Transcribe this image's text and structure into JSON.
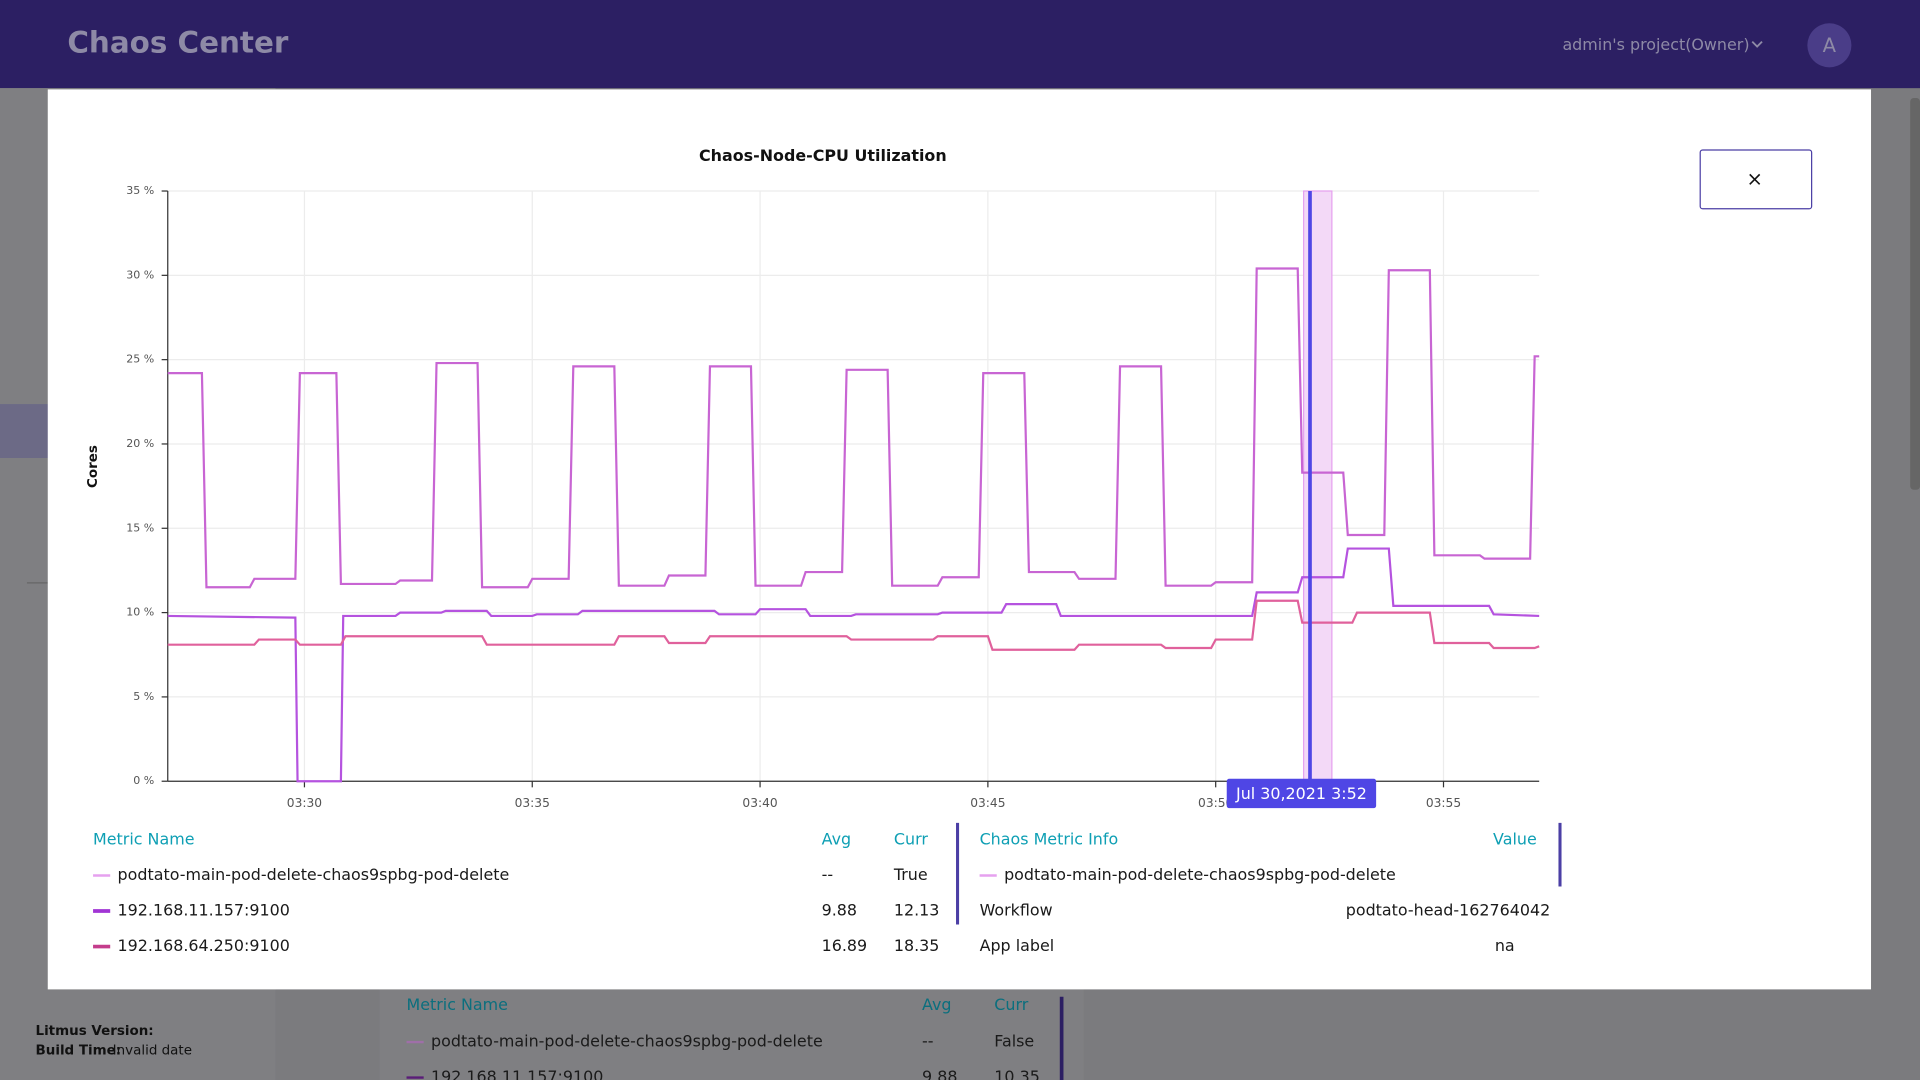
{
  "header": {
    "title": "Chaos Center",
    "project": "admin's project(Owner)",
    "avatar": "A"
  },
  "sidebar": {
    "version_label": "Litmus Version:",
    "build_label": "Build Time:",
    "build_value": "Invalid date"
  },
  "background_table": {
    "headers": [
      "Metric Name",
      "Avg",
      "Curr"
    ],
    "rows": [
      [
        "podtato-main-pod-delete-chaos9spbg-pod-delete",
        "--",
        "False"
      ],
      [
        "192.168.11.157:9100",
        "9.88",
        "10.35"
      ]
    ]
  },
  "modal": {
    "close": "×"
  },
  "chart_data": {
    "type": "line",
    "title": "Chaos-Node-CPU Utilization",
    "y_label": "Cores",
    "xlim": [
      207,
      237.1
    ],
    "xticks": [
      {
        "value": 210,
        "label": "03:30"
      },
      {
        "value": 215,
        "label": "03:35"
      },
      {
        "value": 220,
        "label": "03:40"
      },
      {
        "value": 225,
        "label": "03:45"
      },
      {
        "value": 230,
        "label": "03:50"
      },
      {
        "value": 235,
        "label": "03:55"
      }
    ],
    "ylim": [
      0,
      35
    ],
    "yticks": [
      {
        "value": 0,
        "label": "0 %"
      },
      {
        "value": 5,
        "label": "5 %"
      },
      {
        "value": 10,
        "label": "10 %"
      },
      {
        "value": 15,
        "label": "15 %"
      },
      {
        "value": 20,
        "label": "20 %"
      },
      {
        "value": 25,
        "label": "25 %"
      },
      {
        "value": 30,
        "label": "30 %"
      },
      {
        "value": 35,
        "label": "35 %"
      }
    ],
    "grid": true,
    "chaos_band": [
      231.93,
      232.55
    ],
    "chaos_color": "#f3d9f7",
    "cursor_x": 232.07,
    "cursor_color": "#4f46e5",
    "tooltip": "Jul 30,2021 3:52",
    "series": [
      {
        "color": "#c865d3",
        "x": [
          207,
          207.75,
          207.85,
          208.8,
          208.9,
          209.8,
          209.9,
          210.7,
          210.8,
          212,
          212.1,
          212.8,
          212.9,
          213.8,
          213.9,
          214.9,
          215,
          215.8,
          215.9,
          216.8,
          216.9,
          217.9,
          218,
          218.8,
          218.9,
          219.8,
          219.9,
          220.9,
          221,
          221.8,
          221.9,
          222.8,
          222.9,
          223.9,
          224,
          224.8,
          224.9,
          225.8,
          225.9,
          226.9,
          227,
          227.8,
          227.9,
          228.8,
          228.9,
          229.9,
          230,
          230.8,
          230.9,
          231.8,
          231.9,
          232.8,
          232.9,
          233.7,
          233.8,
          234.7,
          234.8,
          235.8,
          235.9,
          236.9,
          237,
          237.1
        ],
        "values": [
          24.2,
          24.2,
          11.5,
          11.5,
          12,
          12,
          24.2,
          24.2,
          11.7,
          11.7,
          11.9,
          11.9,
          24.8,
          24.8,
          11.5,
          11.5,
          12,
          12,
          24.6,
          24.6,
          11.6,
          11.6,
          12.2,
          12.2,
          24.6,
          24.6,
          11.6,
          11.6,
          12.4,
          12.4,
          24.4,
          24.4,
          11.6,
          11.6,
          12.1,
          12.1,
          24.2,
          24.2,
          12.4,
          12.4,
          12,
          12,
          24.6,
          24.6,
          11.6,
          11.6,
          11.8,
          11.8,
          30.4,
          30.4,
          18.3,
          18.3,
          14.6,
          14.6,
          30.3,
          30.3,
          13.4,
          13.4,
          13.2,
          13.2,
          25.2,
          25.2
        ]
      },
      {
        "color": "#b553df",
        "x": [
          207,
          209.8,
          209.85,
          210.8,
          210.85,
          212,
          212.1,
          213,
          213.1,
          214,
          214.1,
          215,
          215.1,
          216,
          216.1,
          219,
          219.1,
          219.9,
          220,
          221,
          221.1,
          222,
          222.1,
          223.9,
          224,
          225.3,
          225.4,
          226.5,
          226.6,
          230.8,
          230.9,
          231.8,
          231.9,
          232.8,
          232.9,
          233.8,
          233.9,
          236,
          236.1,
          237.1
        ],
        "values": [
          9.8,
          9.7,
          0,
          0,
          9.8,
          9.8,
          10,
          10,
          10.1,
          10.1,
          9.8,
          9.8,
          9.9,
          9.9,
          10.1,
          10.1,
          9.9,
          9.9,
          10.2,
          10.2,
          9.8,
          9.8,
          9.9,
          9.9,
          10,
          10,
          10.5,
          10.5,
          9.8,
          9.8,
          11.2,
          11.2,
          12.1,
          12.1,
          13.8,
          13.8,
          10.4,
          10.4,
          9.9,
          9.8
        ]
      },
      {
        "color": "#e0619c",
        "x": [
          207,
          208.9,
          209,
          209.8,
          209.9,
          210.8,
          210.9,
          213.9,
          214,
          216.8,
          216.9,
          217.9,
          218,
          218.8,
          218.9,
          221.9,
          222,
          223.8,
          223.9,
          225,
          225.1,
          226.9,
          227,
          228.8,
          228.9,
          229.9,
          230,
          230.8,
          230.9,
          231.8,
          231.9,
          233,
          233.1,
          234.7,
          234.8,
          236,
          236.1,
          237,
          237.1
        ],
        "values": [
          8.1,
          8.1,
          8.4,
          8.4,
          8.1,
          8.1,
          8.6,
          8.6,
          8.1,
          8.1,
          8.6,
          8.6,
          8.2,
          8.2,
          8.6,
          8.6,
          8.4,
          8.4,
          8.6,
          8.6,
          7.8,
          7.8,
          8.1,
          8.1,
          7.9,
          7.9,
          8.4,
          8.4,
          10.7,
          10.7,
          9.4,
          9.4,
          10,
          10,
          8.2,
          8.2,
          7.9,
          7.9,
          8
        ]
      }
    ]
  },
  "metrics_table": {
    "headers": [
      "Metric Name",
      "Avg",
      "Curr"
    ],
    "rows": [
      {
        "color": "#e6a1ef",
        "name": "podtato-main-pod-delete-chaos9spbg-pod-delete",
        "avg": "--",
        "curr": "True"
      },
      {
        "color": "#a134d4",
        "name": "192.168.11.157:9100",
        "avg": "9.88",
        "curr": "12.13"
      },
      {
        "color": "#c43d8c",
        "name": "192.168.64.250:9100",
        "avg": "16.89",
        "curr": "18.35"
      }
    ]
  },
  "chaos_info": {
    "headers": [
      "Chaos Metric Info",
      "Value"
    ],
    "color": "#e6a1ef",
    "event": "podtato-main-pod-delete-chaos9spbg-pod-delete",
    "rows": [
      [
        "Workflow",
        "podtato-head-162764042"
      ],
      [
        "App label",
        "na"
      ]
    ]
  }
}
